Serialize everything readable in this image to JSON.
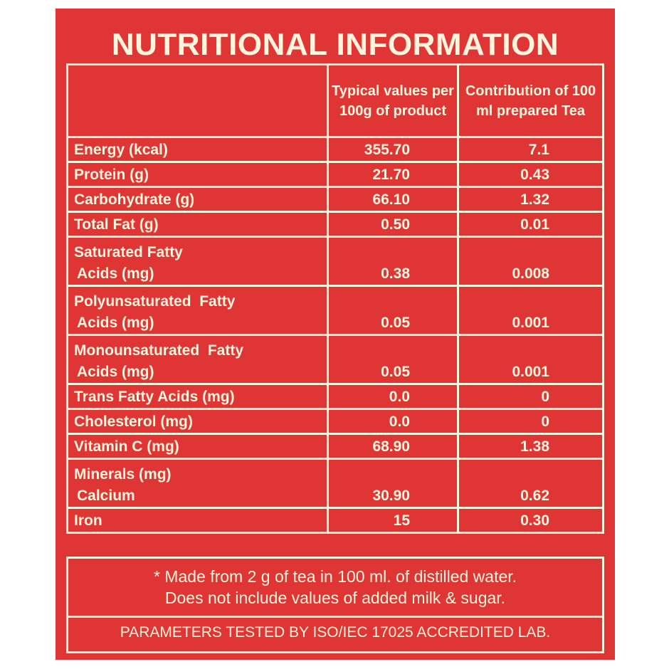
{
  "title": "NUTRITIONAL INFORMATION",
  "headers": {
    "col2": "Typical values per 100g of product",
    "col3": "Contribution of 100 ml prepared Tea"
  },
  "rows": [
    {
      "label": "Energy (kcal)",
      "per100g": "355.70",
      "per100ml": "7.1"
    },
    {
      "label": "Protein (g)",
      "per100g": "21.70",
      "per100ml": "0.43"
    },
    {
      "label": "Carbohydrate (g)",
      "per100g": "66.10",
      "per100ml": "1.32"
    },
    {
      "label": "Total Fat (g)",
      "per100g": "0.50",
      "per100ml": "0.01"
    },
    {
      "label": "Saturated Fatty",
      "label2": "Acids (mg)",
      "per100g": "0.38",
      "per100ml": "0.008"
    },
    {
      "label": "Polyunsaturated  Fatty",
      "label2": "Acids (mg)",
      "per100g": "0.05",
      "per100ml": "0.001"
    },
    {
      "label": "Monounsaturated  Fatty",
      "label2": "Acids (mg)",
      "per100g": "0.05",
      "per100ml": "0.001"
    },
    {
      "label": "Trans Fatty Acids (mg)",
      "per100g": "0.0",
      "per100ml": "0"
    },
    {
      "label": "Cholesterol (mg)",
      "per100g": "0.0",
      "per100ml": "0"
    },
    {
      "label": "Vitamin C (mg)",
      "per100g": "68.90",
      "per100ml": "1.38"
    },
    {
      "label": "Minerals (mg)",
      "label2": "Calcium",
      "per100g": "30.90",
      "per100ml": "0.62"
    },
    {
      "label": "Iron",
      "per100g": "15",
      "per100ml": "0.30"
    }
  ],
  "footnote": {
    "line1": "* Made from 2 g of tea in 100 ml. of distilled water.",
    "line2": "Does not include values of added milk & sugar."
  },
  "lab_note": "PARAMETERS TESTED BY ISO/IEC 17025 ACCREDITED LAB.",
  "colors": {
    "background": "#e03535",
    "text": "#fff4dc"
  }
}
